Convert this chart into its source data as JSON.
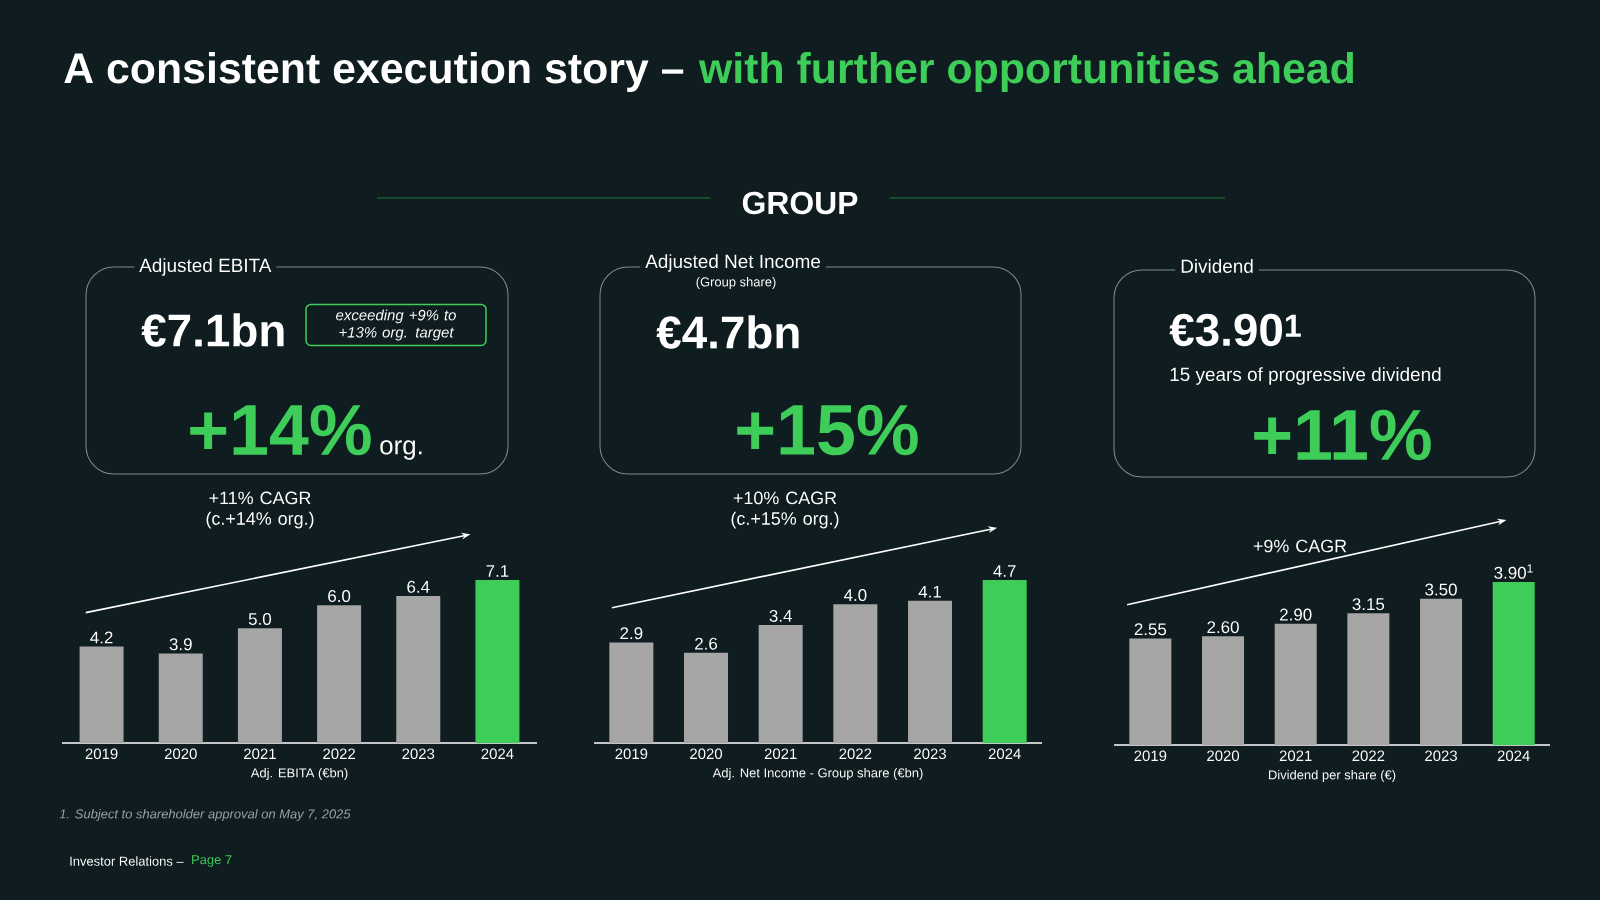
{
  "chart_data": [
    {
      "type": "other",
      "title": "A consistent execution story –",
      "subtitle": "with further opportunities ahead",
      "annotations": [
        "GROUP",
        "1. Subject to shareholder approval on May 7, 2025",
        "Investor Relations –",
        "Page 7"
      ]
    },
    {
      "type": "bar",
      "title": "Adjusted EBITA",
      "categories": [
        "2019",
        "2020",
        "2021",
        "2022",
        "2023",
        "2024"
      ],
      "values": [
        4.2,
        3.9,
        5.0,
        6.0,
        6.4,
        7.1
      ],
      "colors": [
        "#a6a6a6",
        "#a6a6a6",
        "#a6a6a6",
        "#a6a6a6",
        "#a6a6a6",
        "#3dcd58"
      ],
      "value_labels": [
        "4.2",
        "3.9",
        "5.0",
        "6.0",
        "6.4",
        "7.1"
      ],
      "xlabel": "Adj. EBITA (€bn)",
      "annotations": [
        "€7.1bn",
        "exceeding +9% to +13% org. target",
        "+14%",
        "org.",
        "+11% CAGR (c.+14% org.)"
      ]
    },
    {
      "type": "bar",
      "title": "Adjusted Net Income",
      "categories": [
        "2019",
        "2020",
        "2021",
        "2022",
        "2023",
        "2024"
      ],
      "values": [
        2.9,
        2.6,
        3.4,
        4.0,
        4.1,
        4.7
      ],
      "colors": [
        "#a6a6a6",
        "#a6a6a6",
        "#a6a6a6",
        "#a6a6a6",
        "#a6a6a6",
        "#3dcd58"
      ],
      "value_labels": [
        "2.9",
        "2.6",
        "3.4",
        "4.0",
        "4.1",
        "4.7"
      ],
      "xlabel": "Adj. Net Income - Group share (€bn)",
      "annotations": [
        "(Group share)",
        "€4.7bn",
        "+15%",
        "+10% CAGR (c.+15% org.)"
      ]
    },
    {
      "type": "bar",
      "title": "Dividend",
      "categories": [
        "2019",
        "2020",
        "2021",
        "2022",
        "2023",
        "2024"
      ],
      "values": [
        2.55,
        2.6,
        2.9,
        3.15,
        3.5,
        3.9
      ],
      "colors": [
        "#a6a6a6",
        "#a6a6a6",
        "#a6a6a6",
        "#a6a6a6",
        "#a6a6a6",
        "#3dcd58"
      ],
      "value_labels": [
        "2.55",
        "2.60",
        "2.90",
        "3.15",
        "3.50",
        "3.90$^{1}$"
      ],
      "xlabel": "Dividend per share (€)",
      "annotations": [
        "€3.90$^{1}$",
        "15 years of progressive dividend",
        "+11%",
        "+9% CAGR"
      ]
    }
  ]
}
